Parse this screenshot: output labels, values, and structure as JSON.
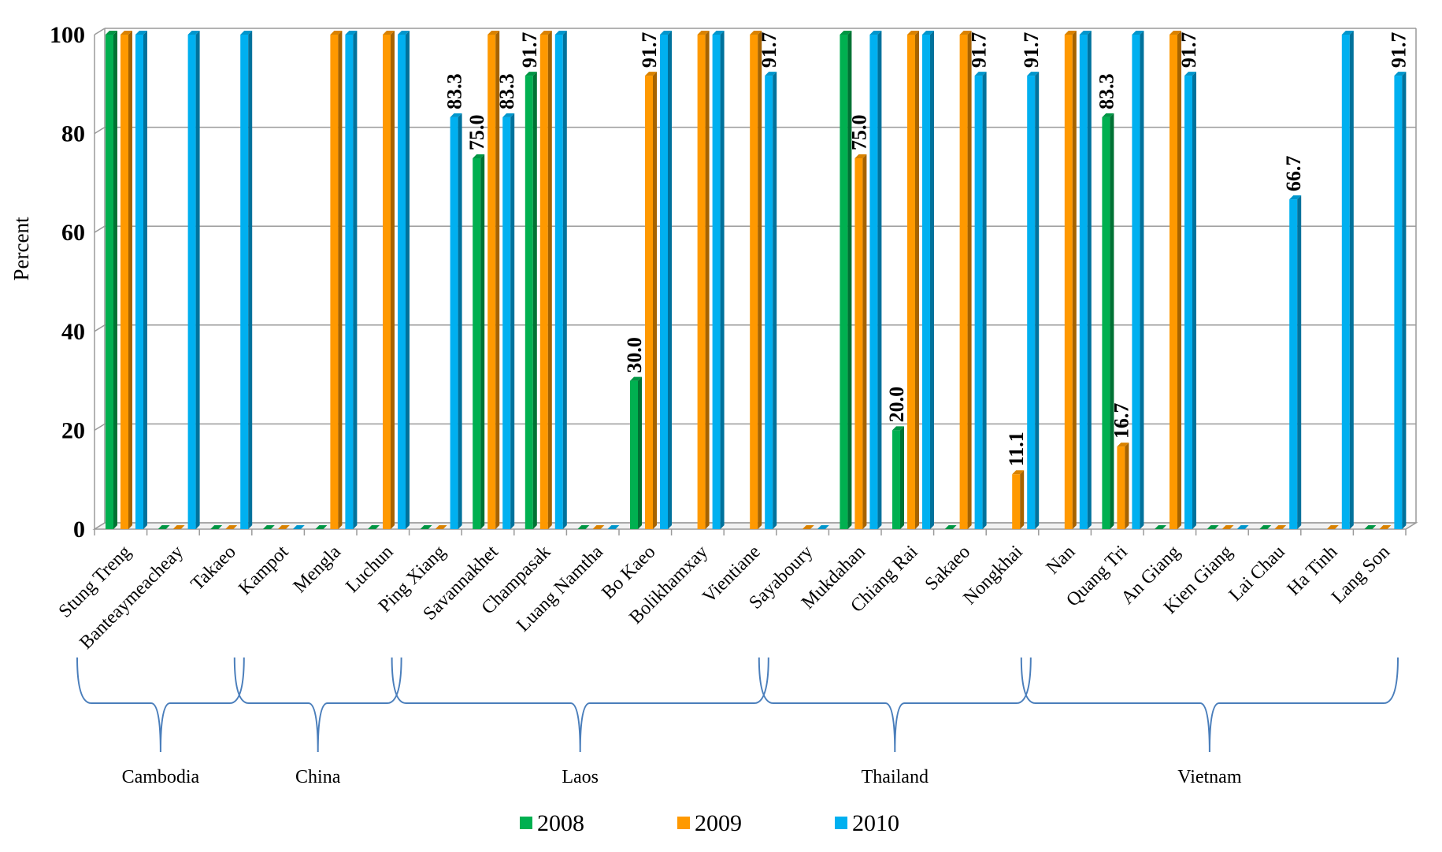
{
  "chart_data": {
    "type": "bar",
    "ylabel": "Percent",
    "ylim": [
      0,
      100
    ],
    "yticks": [
      "0",
      "20",
      "40",
      "60",
      "80",
      "100"
    ],
    "grid": true,
    "legend_position": "bottom",
    "categories": [
      "Stung Treng",
      "Banteaymeacheay",
      "Takaeo",
      "Kampot",
      "Mengla",
      "Luchun",
      "Ping Xiang",
      "Savannakhet",
      "Champasak",
      "Luang Namtha",
      "Bo Kaeo",
      "Bolikhamxay",
      "Vientiane",
      "Sayaboury",
      "Mukdahan",
      "Chiang Rai",
      "Sakaeo",
      "Nongkhai",
      "Nan",
      "Quang Tri",
      "An Giang",
      "Kien Giang",
      "Lai Chau",
      "Ha Tinh",
      "Lang Son"
    ],
    "series": [
      {
        "name": "2008",
        "color": "#00b050",
        "values": [
          100,
          0,
          0,
          0,
          0,
          0,
          0,
          75.0,
          91.7,
          0,
          30.0,
          null,
          null,
          null,
          100,
          20.0,
          0,
          null,
          null,
          83.3,
          0,
          0,
          0,
          null,
          0
        ]
      },
      {
        "name": "2009",
        "color": "#ff9900",
        "values": [
          100,
          0,
          0,
          0,
          100,
          100,
          0,
          100,
          100,
          0,
          91.7,
          100,
          100,
          0,
          75.0,
          100,
          100,
          11.1,
          100,
          16.7,
          100,
          0,
          0,
          0,
          0
        ]
      },
      {
        "name": "2010",
        "color": "#00b0f0",
        "values": [
          100,
          100,
          100,
          0,
          100,
          100,
          83.3,
          83.3,
          100,
          0,
          100,
          100,
          91.7,
          0,
          100,
          100,
          91.7,
          91.7,
          100,
          100,
          91.7,
          0,
          66.7,
          100,
          91.7
        ]
      }
    ],
    "data_labels": [
      {
        "category": "Ping Xiang",
        "series": "2010",
        "text": "83.3"
      },
      {
        "category": "Savannakhet",
        "series": "2008",
        "text": "75.0"
      },
      {
        "category": "Savannakhet",
        "series": "2010",
        "text": "83.3"
      },
      {
        "category": "Champasak",
        "series": "2008",
        "text": "91.7"
      },
      {
        "category": "Bo Kaeo",
        "series": "2008",
        "text": "30.0"
      },
      {
        "category": "Bo Kaeo",
        "series": "2009",
        "text": "91.7"
      },
      {
        "category": "Vientiane",
        "series": "2010",
        "text": "91.7"
      },
      {
        "category": "Mukdahan",
        "series": "2009",
        "text": "75.0"
      },
      {
        "category": "Chiang Rai",
        "series": "2008",
        "text": "20.0"
      },
      {
        "category": "Sakaeo",
        "series": "2010",
        "text": "91.7"
      },
      {
        "category": "Nongkhai",
        "series": "2009",
        "text": "11.1"
      },
      {
        "category": "Nongkhai",
        "series": "2010",
        "text": "91.7"
      },
      {
        "category": "Quang Tri",
        "series": "2008",
        "text": "83.3"
      },
      {
        "category": "Quang Tri",
        "series": "2009",
        "text": "16.7"
      },
      {
        "category": "An Giang",
        "series": "2010",
        "text": "91.7"
      },
      {
        "category": "Lai Chau",
        "series": "2010",
        "text": "66.7"
      },
      {
        "category": "Lang Son",
        "series": "2010",
        "text": "91.7"
      }
    ],
    "groups": [
      {
        "name": "Cambodia",
        "from": "Stung Treng",
        "to": "Takaeo"
      },
      {
        "name": "China",
        "from": "Kampot",
        "to": "Luchun"
      },
      {
        "name": "Laos",
        "from": "Ping Xiang",
        "to": "Vientiane"
      },
      {
        "name": "Thailand",
        "from": "Sayaboury",
        "to": "Nongkhai"
      },
      {
        "name": "Vietnam",
        "from": "Nan",
        "to": "Lang Son"
      }
    ]
  }
}
